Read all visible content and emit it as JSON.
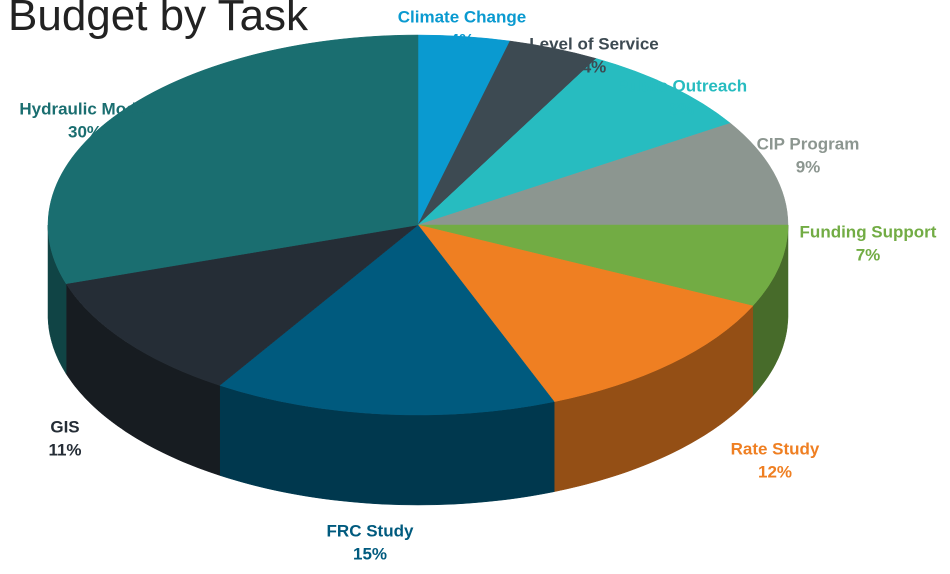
{
  "chart_data": {
    "type": "pie3d",
    "title": "Budget by Task",
    "categories": [
      "Climate Change",
      "Level of Service",
      "Public Outreach",
      "CIP Program",
      "Funding Support",
      "Rate Study",
      "FRC Study",
      "GIS",
      "Hydraulic Model"
    ],
    "values": [
      4,
      4,
      8,
      9,
      7,
      12,
      15,
      11,
      30
    ],
    "value_labels": [
      "4%",
      "4%",
      "8%",
      "9%",
      "7%",
      "12%",
      "15%",
      "11%",
      "30%"
    ],
    "colors": [
      "#0a9ad0",
      "#3d4a52",
      "#27bcc0",
      "#8c9690",
      "#72ac44",
      "#ef7f22",
      "#005a7e",
      "#252d36",
      "#1a6e70"
    ],
    "label_colors": [
      "#0a9ad0",
      "#3d4a52",
      "#27bcc0",
      "#8c9690",
      "#72ac44",
      "#ef7f22",
      "#005a7e",
      "#252d36",
      "#1a6e70"
    ]
  }
}
